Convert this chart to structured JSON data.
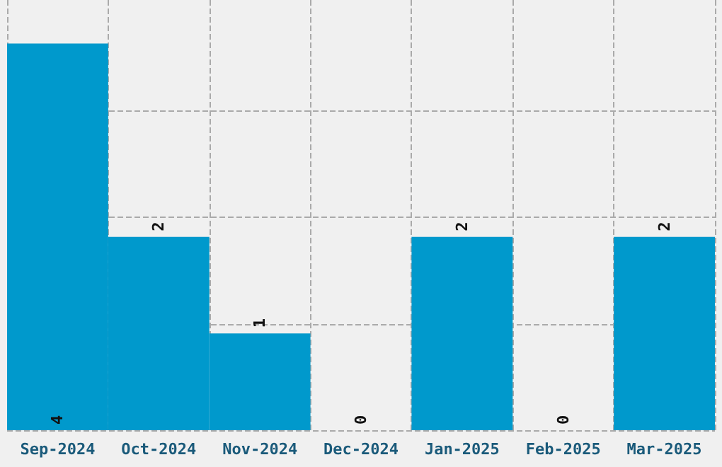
{
  "chart_data": {
    "type": "bar",
    "categories": [
      "Sep-2024",
      "Oct-2024",
      "Nov-2024",
      "Dec-2024",
      "Jan-2025",
      "Feb-2025",
      "Mar-2025"
    ],
    "values": [
      4,
      2,
      1,
      0,
      2,
      0,
      2
    ],
    "color": "#0099cc",
    "ylim": [
      0,
      4.45
    ],
    "yticks": [
      {
        "value": 0,
        "label": null
      },
      {
        "value": 1.1,
        "label": null
      },
      {
        "value": 2.2,
        "label": null
      },
      {
        "value": 3.3,
        "label": null
      }
    ],
    "tick_labels": "x",
    "grid": true,
    "data_labels": true
  }
}
